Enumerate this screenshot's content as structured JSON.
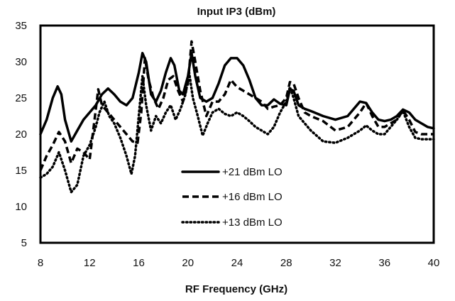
{
  "chart_data": {
    "type": "line",
    "title": "Input IP3 (dBm)",
    "xlabel": "RF Frequency (GHz)",
    "ylabel": "",
    "xlim": [
      8,
      40
    ],
    "ylim": [
      5,
      35
    ],
    "xticks": [
      8,
      12,
      16,
      20,
      24,
      28,
      32,
      36,
      40
    ],
    "yticks": [
      5,
      10,
      15,
      20,
      25,
      30,
      35
    ],
    "grid": false,
    "legend_position": "center",
    "series": [
      {
        "name": "+21 dBm LO",
        "line_style": "solid",
        "color": "#000000",
        "x": [
          8,
          8.5,
          9,
          9.4,
          9.7,
          10,
          10.5,
          11,
          11.5,
          12,
          12.5,
          13,
          13.5,
          14,
          14.5,
          15,
          15.5,
          16,
          16.3,
          16.6,
          17,
          17.4,
          17.8,
          18.2,
          18.6,
          18.9,
          19.3,
          19.6,
          20,
          20.3,
          20.6,
          21,
          21.5,
          22,
          22.5,
          23,
          23.5,
          24,
          24.5,
          25,
          25.5,
          26,
          26.5,
          27,
          27.5,
          28,
          28.3,
          28.6,
          29,
          29.5,
          30,
          31,
          32,
          33,
          34,
          34.5,
          35,
          35.5,
          36,
          36.5,
          37,
          37.5,
          38,
          38.5,
          39,
          39.5,
          40
        ],
        "y": [
          20,
          22,
          25,
          26.6,
          25.5,
          22,
          19,
          20.5,
          22,
          23,
          24,
          25.5,
          26.3,
          25.5,
          24.5,
          24,
          25,
          28.5,
          31.2,
          30,
          25.5,
          24.5,
          26,
          28.5,
          30.5,
          29.5,
          26,
          25.5,
          28,
          31.2,
          28,
          25,
          24.5,
          25,
          27,
          29.5,
          30.5,
          30.5,
          29.5,
          27.5,
          25,
          24,
          24,
          24.8,
          24.2,
          24,
          26.2,
          26,
          24,
          23.5,
          23.2,
          22.5,
          22,
          22.5,
          24.5,
          24.3,
          23,
          22,
          21.8,
          22,
          22.5,
          23.4,
          23,
          22,
          21.5,
          21,
          20.8
        ]
      },
      {
        "name": "+16 dBm LO",
        "line_style": "dashed",
        "color": "#000000",
        "x": [
          8,
          8.5,
          9,
          9.5,
          10,
          10.5,
          11,
          11.5,
          12,
          12.4,
          12.7,
          13,
          13.5,
          14,
          14.5,
          15,
          15.5,
          15.9,
          16.2,
          16.5,
          16.8,
          17.2,
          17.6,
          18,
          18.4,
          18.8,
          19.2,
          19.6,
          20,
          20.3,
          20.6,
          21,
          21.5,
          22,
          22.5,
          23,
          23.5,
          24,
          24.5,
          25,
          25.5,
          26,
          26.5,
          27,
          27.5,
          28,
          28.3,
          28.6,
          29,
          29.5,
          30,
          31,
          32,
          33,
          34,
          34.5,
          35,
          35.5,
          36,
          36.5,
          37,
          37.5,
          38,
          38.5,
          39,
          40
        ],
        "y": [
          15,
          17,
          18.5,
          20.3,
          19,
          16,
          18,
          17.5,
          16.5,
          22,
          26.2,
          24,
          23,
          22,
          21,
          20,
          19,
          18.8,
          23,
          30.5,
          27.5,
          25,
          23.5,
          25,
          27.5,
          28,
          26,
          24.5,
          27,
          32.8,
          30,
          26,
          22.5,
          24.5,
          24.5,
          25.5,
          27.5,
          26.5,
          26,
          25.5,
          25,
          24.5,
          23.5,
          23.8,
          24,
          25,
          27.2,
          27,
          25,
          23,
          22.5,
          21.8,
          20.5,
          21,
          23,
          24.3,
          22.5,
          21,
          21,
          21.5,
          22,
          23.3,
          22,
          20.3,
          20,
          20
        ]
      },
      {
        "name": "+13 dBm LO",
        "line_style": "dotted",
        "color": "#000000",
        "x": [
          8,
          8.5,
          9,
          9.5,
          10,
          10.5,
          11,
          11.5,
          12,
          12.5,
          12.8,
          13.2,
          13.6,
          14,
          14.5,
          15,
          15.4,
          15.7,
          16,
          16.3,
          16.6,
          17,
          17.4,
          17.8,
          18.2,
          18.6,
          19,
          19.4,
          19.8,
          20.1,
          20.4,
          20.8,
          21.2,
          21.6,
          22,
          22.5,
          23,
          23.5,
          24,
          24.5,
          25,
          25.5,
          26,
          26.5,
          27,
          27.5,
          28,
          28.3,
          28.6,
          29,
          29.5,
          30,
          31,
          32,
          33,
          34,
          34.5,
          35,
          35.5,
          36,
          36.5,
          37,
          37.5,
          38,
          38.5,
          39,
          40
        ],
        "y": [
          14,
          14.5,
          15.5,
          17.5,
          15,
          12,
          13,
          17,
          18.5,
          21,
          23,
          24.5,
          22.5,
          21.5,
          19.5,
          17,
          14.5,
          17,
          22.5,
          28,
          24,
          20.5,
          22.5,
          21.5,
          23,
          24,
          22,
          23.5,
          25.5,
          28.5,
          25,
          22.5,
          19.8,
          21.5,
          23,
          23.5,
          22.8,
          22.5,
          23,
          22.5,
          21.8,
          21,
          20.5,
          20,
          21,
          23,
          24.5,
          26.5,
          25,
          22.5,
          21.5,
          20.5,
          19,
          18.8,
          19.5,
          20.5,
          21.2,
          20.5,
          20,
          20,
          21,
          22,
          23.2,
          21,
          19.5,
          19.3,
          19.3
        ]
      }
    ]
  }
}
